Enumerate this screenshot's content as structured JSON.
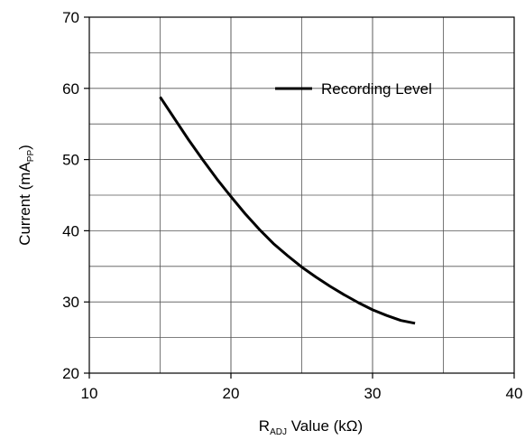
{
  "chart_data": {
    "type": "line",
    "xlabel": {
      "base": "R",
      "sub": "ADJ",
      "rest": " Value (kΩ)"
    },
    "ylabel": {
      "base": "Current (mA",
      "sub": "PP",
      "rest": ")"
    },
    "xlim": [
      10,
      40
    ],
    "ylim": [
      20,
      70
    ],
    "x_ticks": [
      10,
      20,
      30,
      40
    ],
    "x_tick_labels": [
      "10",
      "20",
      "30",
      "40"
    ],
    "y_ticks": [
      20,
      30,
      40,
      50,
      60,
      70
    ],
    "y_tick_labels": [
      "20",
      "30",
      "40",
      "50",
      "60",
      "70"
    ],
    "x_grid": [
      15,
      20,
      25,
      30,
      35
    ],
    "y_grid": [
      25,
      35,
      45,
      55,
      65
    ],
    "grid": true,
    "legend_position": "top-right",
    "series": [
      {
        "name": "Recording Level",
        "color": "#000000",
        "x": [
          15,
          16,
          17,
          18,
          19,
          20,
          21,
          22,
          23,
          24,
          25,
          26,
          27,
          28,
          29,
          30,
          31,
          32,
          33
        ],
        "y": [
          58.8,
          55.8,
          52.8,
          50.0,
          47.3,
          44.8,
          42.4,
          40.2,
          38.2,
          36.5,
          34.9,
          33.5,
          32.2,
          31.0,
          29.9,
          28.9,
          28.1,
          27.4,
          27.0
        ]
      }
    ]
  }
}
